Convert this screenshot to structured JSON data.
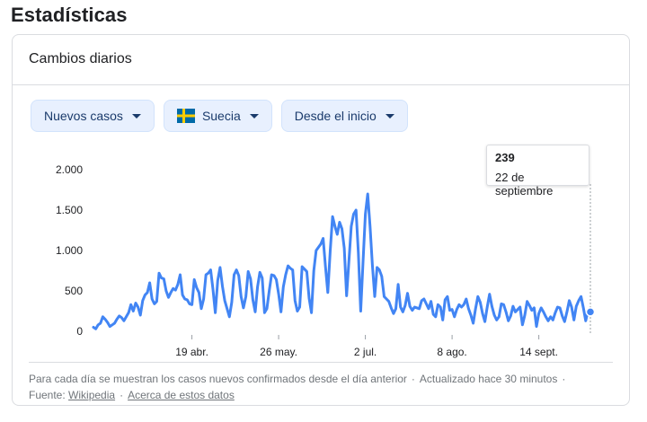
{
  "page": {
    "title": "Estadísticas"
  },
  "card": {
    "title": "Cambios diarios"
  },
  "filters": {
    "metric": {
      "label": "Nuevos casos",
      "icon": "caret-down-icon"
    },
    "country": {
      "label": "Suecia",
      "flag_icon": "sweden-flag-icon"
    },
    "range": {
      "label": "Desde el inicio",
      "icon": "caret-down-icon"
    }
  },
  "tooltip": {
    "value": "239",
    "date": "22 de septiembre"
  },
  "footer": {
    "note": "Para cada día se muestran los casos nuevos confirmados desde el día anterior",
    "updated": "Actualizado hace 30 minutos",
    "source_label": "Fuente:",
    "source_link": "Wikipedia",
    "about_link": "Acerca de estos datos"
  },
  "colors": {
    "accent": "#4285f4",
    "chip_bg": "#e8f0fe",
    "flag_blue": "#006aa7",
    "flag_yellow": "#fecc00"
  },
  "chart_data": {
    "type": "line",
    "title": "",
    "xlabel": "",
    "ylabel": "",
    "ylim": [
      0,
      2000
    ],
    "y_ticks": [
      0,
      500,
      1000,
      1500,
      2000
    ],
    "y_tick_labels": [
      "0",
      "500",
      "1.000",
      "1.500",
      "2.000"
    ],
    "x_tick_labels": [
      "19 abr.",
      "26 may.",
      "2 jul.",
      "8 ago.",
      "14 sept."
    ],
    "x_tick_index": [
      42,
      79,
      116,
      153,
      190
    ],
    "grid": false,
    "series": [
      {
        "values": [
          50,
          30,
          80,
          100,
          180,
          150,
          110,
          60,
          80,
          100,
          150,
          190,
          170,
          130,
          180,
          230,
          330,
          250,
          350,
          300,
          200,
          380,
          450,
          480,
          600,
          400,
          340,
          370,
          720,
          660,
          650,
          500,
          420,
          480,
          530,
          510,
          580,
          700,
          450,
          400,
          390,
          340,
          330,
          640,
          540,
          480,
          280,
          400,
          700,
          720,
          760,
          520,
          230,
          630,
          790,
          560,
          380,
          280,
          180,
          360,
          700,
          760,
          690,
          430,
          290,
          430,
          740,
          650,
          390,
          240,
          550,
          730,
          660,
          230,
          280,
          500,
          700,
          690,
          640,
          460,
          240,
          550,
          700,
          810,
          780,
          760,
          380,
          250,
          300,
          800,
          770,
          740,
          410,
          230,
          750,
          1000,
          1040,
          1080,
          1150,
          800,
          480,
          1000,
          1420,
          1300,
          1200,
          1350,
          1270,
          1030,
          440,
          870,
          1300,
          1450,
          1500,
          970,
          250,
          860,
          1450,
          1700,
          1300,
          820,
          430,
          790,
          760,
          680,
          430,
          400,
          370,
          290,
          220,
          280,
          580,
          300,
          240,
          320,
          470,
          310,
          260,
          300,
          290,
          280,
          380,
          400,
          340,
          280,
          370,
          210,
          180,
          330,
          300,
          140,
          390,
          430,
          260,
          270,
          180,
          270,
          330,
          300,
          330,
          400,
          280,
          200,
          100,
          280,
          430,
          360,
          220,
          120,
          300,
          460,
          310,
          200,
          140,
          180,
          340,
          330,
          240,
          130,
          190,
          310,
          240,
          270,
          300,
          80,
          200,
          370,
          320,
          260,
          290,
          60,
          220,
          290,
          240,
          180,
          130,
          180,
          140,
          230,
          300,
          290,
          190,
          120,
          240,
          380,
          300,
          140,
          310,
          380,
          430,
          290,
          130,
          260,
          240
        ]
      }
    ]
  }
}
